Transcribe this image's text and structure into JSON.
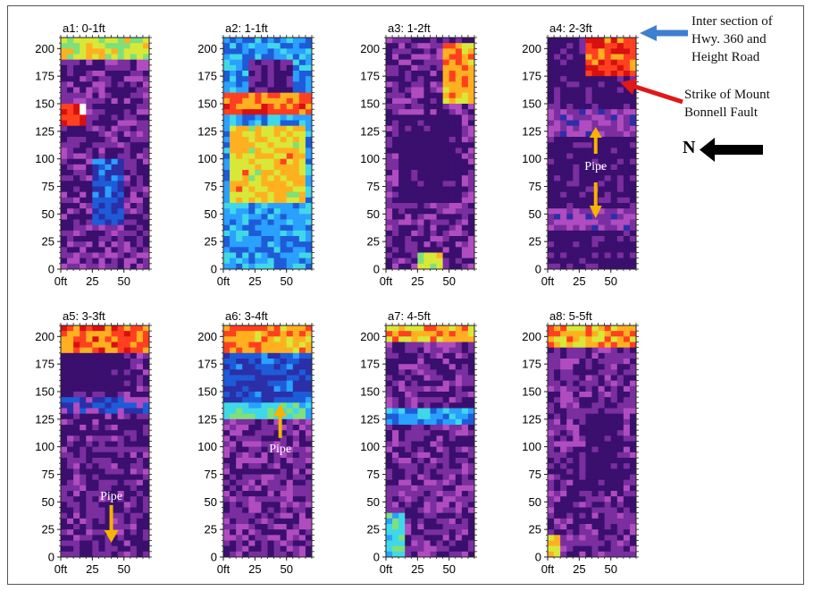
{
  "chart_data": [
    {
      "type": "heatmap",
      "title": "a1: 0-1ft",
      "xticks": [
        "0ft",
        "25",
        "50"
      ],
      "yticks": [
        "0",
        "25",
        "50",
        "75",
        "100",
        "125",
        "150",
        "175",
        "200"
      ],
      "xlim": [
        0,
        70
      ],
      "ylim": [
        0,
        210
      ],
      "background_level": 0.1,
      "features": [
        {
          "level": 0.7,
          "y_from": 190,
          "y_to": 210,
          "x_from": 0,
          "x_to": 70
        },
        {
          "level": 0.93,
          "y_from": 130,
          "y_to": 150,
          "x_from": 0,
          "x_to": 18
        },
        {
          "level": 0.35,
          "y_from": 40,
          "y_to": 100,
          "x_from": 25,
          "x_to": 50
        }
      ]
    },
    {
      "type": "heatmap",
      "title": "a2: 1-1ft",
      "xticks": [
        "0ft",
        "25",
        "50"
      ],
      "yticks": [
        "0",
        "25",
        "50",
        "75",
        "100",
        "125",
        "150",
        "175",
        "200"
      ],
      "xlim": [
        0,
        70
      ],
      "ylim": [
        0,
        210
      ],
      "background_level": 0.45,
      "features": [
        {
          "level": 0.85,
          "y_from": 140,
          "y_to": 160,
          "x_from": 0,
          "x_to": 70
        },
        {
          "level": 0.75,
          "y_from": 60,
          "y_to": 130,
          "x_from": 5,
          "x_to": 65
        },
        {
          "level": 0.05,
          "y_from": 160,
          "y_to": 190,
          "x_from": 20,
          "x_to": 55
        }
      ]
    },
    {
      "type": "heatmap",
      "title": "a3: 1-2ft",
      "xticks": [
        "0ft",
        "25",
        "50"
      ],
      "yticks": [
        "0",
        "25",
        "50",
        "75",
        "100",
        "125",
        "150",
        "175",
        "200"
      ],
      "xlim": [
        0,
        70
      ],
      "ylim": [
        0,
        210
      ],
      "background_level": 0.1,
      "features": [
        {
          "level": 0.8,
          "y_from": 150,
          "y_to": 205,
          "x_from": 45,
          "x_to": 70
        },
        {
          "level": 0.0,
          "y_from": 60,
          "y_to": 140,
          "x_from": 10,
          "x_to": 60
        },
        {
          "level": 0.7,
          "y_from": 0,
          "y_to": 15,
          "x_from": 25,
          "x_to": 45
        }
      ]
    },
    {
      "type": "heatmap",
      "title": "a4: 2-3ft",
      "xticks": [
        "0ft",
        "25",
        "50"
      ],
      "yticks": [
        "0",
        "25",
        "50",
        "75",
        "100",
        "125",
        "150",
        "175",
        "200"
      ],
      "xlim": [
        0,
        70
      ],
      "ylim": [
        0,
        210
      ],
      "background_level": 0.02,
      "features": [
        {
          "level": 0.9,
          "y_from": 175,
          "y_to": 210,
          "x_from": 30,
          "x_to": 70
        },
        {
          "level": 0.18,
          "y_from": 120,
          "y_to": 145,
          "x_from": 0,
          "x_to": 70
        },
        {
          "level": 0.18,
          "y_from": 35,
          "y_to": 55,
          "x_from": 0,
          "x_to": 70
        }
      ],
      "annotations": [
        {
          "text": "Pipe",
          "x": 38,
          "y": 90
        }
      ]
    },
    {
      "type": "heatmap",
      "title": "a5: 3-3ft",
      "xticks": [
        "0ft",
        "25",
        "50"
      ],
      "yticks": [
        "0",
        "25",
        "50",
        "75",
        "100",
        "125",
        "150",
        "175",
        "200"
      ],
      "xlim": [
        0,
        70
      ],
      "ylim": [
        0,
        210
      ],
      "background_level": 0.08,
      "features": [
        {
          "level": 0.85,
          "y_from": 185,
          "y_to": 210,
          "x_from": 0,
          "x_to": 70
        },
        {
          "level": 0.3,
          "y_from": 130,
          "y_to": 145,
          "x_from": 0,
          "x_to": 70
        },
        {
          "level": 0.0,
          "y_from": 150,
          "y_to": 185,
          "x_from": 0,
          "x_to": 50
        }
      ],
      "annotations": [
        {
          "text": "Pipe",
          "x": 40,
          "y": 52
        }
      ]
    },
    {
      "type": "heatmap",
      "title": "a6: 3-4ft",
      "xticks": [
        "0ft",
        "25",
        "50"
      ],
      "yticks": [
        "0",
        "25",
        "50",
        "75",
        "100",
        "125",
        "150",
        "175",
        "200"
      ],
      "xlim": [
        0,
        70
      ],
      "ylim": [
        0,
        210
      ],
      "background_level": 0.12,
      "features": [
        {
          "level": 0.8,
          "y_from": 185,
          "y_to": 210,
          "x_from": 0,
          "x_to": 70
        },
        {
          "level": 0.55,
          "y_from": 125,
          "y_to": 140,
          "x_from": 0,
          "x_to": 70
        },
        {
          "level": 0.35,
          "y_from": 140,
          "y_to": 185,
          "x_from": 0,
          "x_to": 70
        }
      ],
      "annotations": [
        {
          "text": "Pipe",
          "x": 45,
          "y": 95
        }
      ]
    },
    {
      "type": "heatmap",
      "title": "a7: 4-5ft",
      "xticks": [
        "0ft",
        "25",
        "50"
      ],
      "yticks": [
        "0",
        "25",
        "50",
        "75",
        "100",
        "125",
        "150",
        "175",
        "200"
      ],
      "xlim": [
        0,
        70
      ],
      "ylim": [
        0,
        210
      ],
      "background_level": 0.1,
      "features": [
        {
          "level": 0.8,
          "y_from": 195,
          "y_to": 210,
          "x_from": 0,
          "x_to": 70
        },
        {
          "level": 0.45,
          "y_from": 120,
          "y_to": 135,
          "x_from": 0,
          "x_to": 70
        },
        {
          "level": 0.55,
          "y_from": 0,
          "y_to": 40,
          "x_from": 0,
          "x_to": 15
        }
      ]
    },
    {
      "type": "heatmap",
      "title": "a8: 5-5ft",
      "xticks": [
        "0ft",
        "25",
        "50"
      ],
      "yticks": [
        "0",
        "25",
        "50",
        "75",
        "100",
        "125",
        "150",
        "175",
        "200"
      ],
      "xlim": [
        0,
        70
      ],
      "ylim": [
        0,
        210
      ],
      "background_level": 0.1,
      "features": [
        {
          "level": 0.8,
          "y_from": 190,
          "y_to": 210,
          "x_from": 0,
          "x_to": 70
        },
        {
          "level": 0.75,
          "y_from": 0,
          "y_to": 20,
          "x_from": 0,
          "x_to": 10
        },
        {
          "level": 0.0,
          "y_from": 60,
          "y_to": 130,
          "x_from": 30,
          "x_to": 60
        }
      ]
    }
  ],
  "colormap": [
    "#3a0f6e",
    "#7a2ea0",
    "#b04cc0",
    "#2b2fa8",
    "#1e5bd8",
    "#2aa0ff",
    "#40d8e8",
    "#7fe07a",
    "#d8e838",
    "#ffb020",
    "#ff4020",
    "#d81010",
    "#ffffff"
  ],
  "legend": {
    "intersection_label": [
      "Inter section of",
      "Hwy. 360 and",
      "Height Road"
    ],
    "intersection_arrow_color": "#3f7fd0",
    "fault_label": [
      "Strike of Mount",
      "Bonnell Fault"
    ],
    "fault_arrow_color": "#e01818",
    "north_label": "N",
    "pipe_arrow_color": "#f6b300"
  }
}
